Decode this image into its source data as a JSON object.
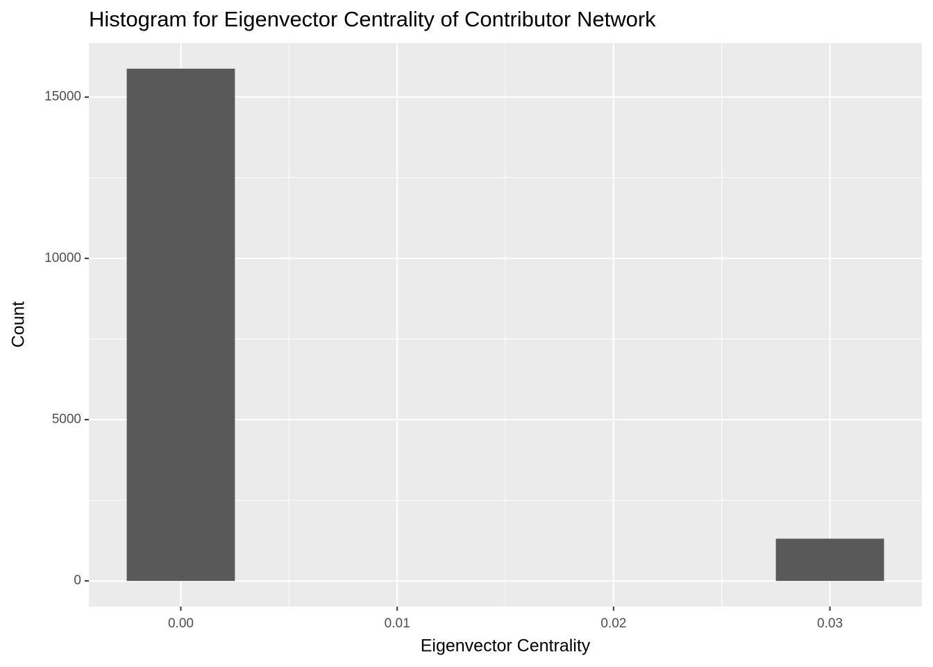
{
  "chart_data": {
    "type": "histogram",
    "title": "Histogram for Eigenvector Centrality of Contributor Network",
    "x_label": "Eigenvector Centrality",
    "y_label": "Count",
    "bins": [
      -0.0025,
      0.0025,
      0.0075,
      0.0125,
      0.0175,
      0.0225,
      0.0275,
      0.0325
    ],
    "counts": [
      15880,
      0,
      0,
      0,
      0,
      0,
      1310
    ],
    "color": "#595959",
    "xlim": [
      -0.00425,
      0.03425
    ],
    "ylim": [
      -794,
      16674
    ],
    "xticks": [
      {
        "value": 0,
        "label": "0.00"
      },
      0.01,
      0.02,
      0.03
    ],
    "yticks": [
      0,
      5000,
      10000,
      15000
    ],
    "xminor_ticks": [
      0.005,
      0.015,
      0.025
    ],
    "yminor_ticks": [
      2500,
      7500,
      12500
    ],
    "grid": true
  }
}
